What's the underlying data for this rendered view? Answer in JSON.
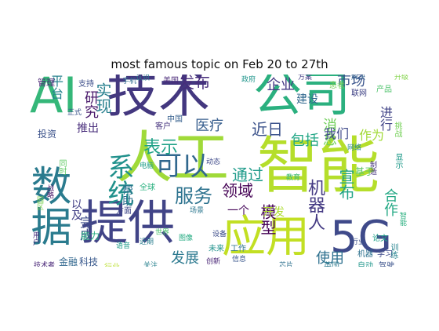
{
  "figure": {
    "title": "most famous topic on Feb 20 to 27th"
  },
  "words": [
    {
      "id": "AI",
      "text": "AI",
      "color": "#35b779"
    },
    {
      "id": "jishu",
      "text": "技术",
      "color": "#43377f"
    },
    {
      "id": "gongsi",
      "text": "公司",
      "color": "#2bb07f"
    },
    {
      "id": "shuju",
      "text": "数据",
      "color": "#2a7b8e"
    },
    {
      "id": "rengong",
      "text": "人工",
      "color": "#a0da39"
    },
    {
      "id": "zhineng",
      "text": "智能",
      "color": "#b5de2b"
    },
    {
      "id": "tigong",
      "text": "提供",
      "color": "#414487"
    },
    {
      "id": "yingyong",
      "text": "应用",
      "color": "#c2df23"
    },
    {
      "id": "5G",
      "text": "5G",
      "color": "#3f4a8a"
    },
    {
      "id": "keyi",
      "text": "可以",
      "color": "#31688e"
    },
    {
      "id": "xitong",
      "text": "系统",
      "color": "#21918c"
    },
    {
      "id": "fuwu",
      "text": "服务",
      "color": "#2c728e"
    },
    {
      "id": "fabu",
      "text": "发布",
      "color": "#472d7b"
    },
    {
      "id": "qiye",
      "text": "企业",
      "color": "#443983"
    },
    {
      "id": "shichang",
      "text": "市场",
      "color": "#3a548c"
    },
    {
      "id": "yanjiu",
      "text": "研究",
      "color": "#48186a"
    },
    {
      "id": "shixian",
      "text": "实现",
      "color": "#277f8e"
    },
    {
      "id": "pingtai",
      "text": "平台",
      "color": "#26828e"
    },
    {
      "id": "jianshe",
      "text": "建设",
      "color": "#31688e"
    },
    {
      "id": "jinri",
      "text": "近日",
      "color": "#3b528b"
    },
    {
      "id": "yiliao",
      "text": "医疗",
      "color": "#365d8d"
    },
    {
      "id": "biaoshi",
      "text": "表示",
      "color": "#1fa187"
    },
    {
      "id": "tongguo",
      "text": "通过",
      "color": "#1e9b8a"
    },
    {
      "id": "lingyu",
      "text": "领域",
      "color": "#440154"
    },
    {
      "id": "baokuo",
      "text": "包括",
      "color": "#21a685"
    },
    {
      "id": "xiaoxi",
      "text": "消息",
      "color": "#6ece58"
    },
    {
      "id": "women",
      "text": "我们",
      "color": "#3e4989"
    },
    {
      "id": "zuowei",
      "text": "作为",
      "color": "#a2da37"
    },
    {
      "id": "jinxing",
      "text": "进行",
      "color": "#414487"
    },
    {
      "id": "xuanbu",
      "text": "宣布",
      "color": "#20a386"
    },
    {
      "id": "hezuo",
      "text": "合作",
      "color": "#22a884"
    },
    {
      "id": "jiqiren",
      "text": "机器人",
      "color": "#443a83"
    },
    {
      "id": "shiyong",
      "text": "使用",
      "color": "#2d708e"
    },
    {
      "id": "moxing",
      "text": "模型",
      "color": "#440154"
    },
    {
      "id": "kaifa",
      "text": "开发",
      "color": "#addc30"
    },
    {
      "id": "fazhan",
      "text": "发展",
      "color": "#2a788e"
    },
    {
      "id": "yige",
      "text": "一个",
      "color": "#46075a"
    },
    {
      "id": "wancheng",
      "text": "完成",
      "color": "#3e4c8a"
    },
    {
      "id": "yiji",
      "text": "以及",
      "color": "#423f85"
    },
    {
      "id": "bangzhu",
      "text": "帮助",
      "color": "#2e6f8e"
    },
    {
      "id": "tuichu",
      "text": "推出",
      "color": "#472c7a"
    },
    {
      "id": "touzi",
      "text": "投资",
      "color": "#3b528b"
    },
    {
      "id": "jinrong",
      "text": "金融",
      "color": "#31678e"
    },
    {
      "id": "keji",
      "text": "科技",
      "color": "#38588c"
    },
    {
      "id": "nengli",
      "text": "能力",
      "color": "#27ad81"
    },
    {
      "id": "guanli",
      "text": "管理",
      "color": "#482374"
    },
    {
      "id": "zhichi",
      "text": "支持",
      "color": "#3d4e8a"
    },
    {
      "id": "tongshi",
      "text": "同时",
      "color": "#5ec962"
    },
    {
      "id": "zhongguo",
      "text": "中国",
      "color": "#355f8d"
    },
    {
      "id": "meiguo",
      "text": "美国",
      "color": "#482878"
    },
    {
      "id": "kehu",
      "text": "客户",
      "color": "#46337e"
    },
    {
      "id": "weilai",
      "text": "未来",
      "color": "#20928c"
    },
    {
      "id": "gongzuo",
      "text": "工作",
      "color": "#2c728e"
    },
    {
      "id": "yingguo",
      "text": "英国",
      "color": "#2a788e"
    },
    {
      "id": "zidong",
      "text": "自动",
      "color": "#1f968b"
    },
    {
      "id": "jiashi",
      "text": "驾驶",
      "color": "#3b528b"
    },
    {
      "id": "jiqi",
      "text": "机器",
      "color": "#2c718e"
    },
    {
      "id": "xuexi",
      "text": "学习",
      "color": "#3e4a89"
    },
    {
      "id": "xinxi",
      "text": "信息",
      "color": "#39568c"
    },
    {
      "id": "jiyu",
      "text": "基于",
      "color": "#5cc863"
    },
    {
      "id": "lianwang",
      "text": "联网",
      "color": "#414487"
    },
    {
      "id": "chanpin",
      "text": "产品",
      "color": "#4ec36b"
    },
    {
      "id": "huanzhe",
      "text": "患者",
      "color": "#70cf57"
    },
    {
      "id": "quanqiu",
      "text": "全球",
      "color": "#2ab07f"
    },
    {
      "id": "shuzihua",
      "text": "数字化",
      "color": "#46327e"
    },
    {
      "id": "xianshi",
      "text": "显示",
      "color": "#1f9a8a"
    },
    {
      "id": "tiaozhan",
      "text": "挑战",
      "color": "#73d056"
    },
    {
      "id": "jishuzhe",
      "text": "技术者",
      "color": "#482677"
    },
    {
      "id": "fangmian",
      "text": "方面",
      "color": "#3f4788"
    },
    {
      "id": "xunlian",
      "text": "训练",
      "color": "#25838e"
    },
    {
      "id": "zhiyue",
      "text": "智能",
      "color": "#29af7f"
    },
    {
      "id": "lunwen",
      "text": "论文",
      "color": "#1fa088"
    },
    {
      "id": "huodong",
      "text": "行业",
      "color": "#b8de29"
    },
    {
      "id": "mubiao",
      "text": "目前",
      "color": "#31688e"
    },
    {
      "id": "jiagou",
      "text": "架构",
      "color": "#95d840"
    },
    {
      "id": "suanfa",
      "text": "算法",
      "color": "#3a548c"
    },
    {
      "id": "guanzhu",
      "text": "关注",
      "color": "#27808e"
    },
    {
      "id": "xinpian",
      "text": "芯片",
      "color": "#2d708e"
    },
    {
      "id": "yuanqu",
      "text": "园区",
      "color": "#7ad151"
    },
    {
      "id": "zhanlue",
      "text": "战略",
      "color": "#48186a"
    },
    {
      "id": "wangluo",
      "text": "网络",
      "color": "#24878e"
    },
    {
      "id": "zhizao",
      "text": "制造",
      "color": "#45337d"
    },
    {
      "id": "jinqi",
      "text": "近期",
      "color": "#287c8e"
    },
    {
      "id": "shebei",
      "text": "设备",
      "color": "#3d4d8a"
    },
    {
      "id": "yujian",
      "text": "语音",
      "color": "#1e9c89"
    },
    {
      "id": "shijie",
      "text": "世界",
      "color": "#4ac16d"
    },
    {
      "id": "changjing",
      "text": "场景",
      "color": "#2a768e"
    },
    {
      "id": "yonghu",
      "text": "用户",
      "color": "#472f7d"
    },
    {
      "id": "jiejue",
      "text": "解决",
      "color": "#34618d"
    },
    {
      "id": "chuangxin",
      "text": "创新",
      "color": "#482475"
    },
    {
      "id": "diannao",
      "text": "电脑",
      "color": "#1f9e89"
    },
    {
      "id": "jiaoyu",
      "text": "教育",
      "color": "#3fbc73"
    },
    {
      "id": "fangan",
      "text": "方案",
      "color": "#433e85"
    },
    {
      "id": "shouji",
      "text": "手机",
      "color": "#2f6c8e"
    },
    {
      "id": "zhengfu",
      "text": "政府",
      "color": "#1f958b"
    },
    {
      "id": "hangye",
      "text": "行业",
      "color": "#3c508b"
    },
    {
      "id": "qiche",
      "text": "汽车",
      "color": "#472a7a"
    },
    {
      "id": "tuxiang",
      "text": "图像",
      "color": "#25ab82"
    },
    {
      "id": "renshi",
      "text": "认识",
      "color": "#287d8e"
    },
    {
      "id": "dongtai",
      "text": "动态",
      "color": "#3e4989"
    },
    {
      "id": "shengji",
      "text": "升级",
      "color": "#84d44b"
    },
    {
      "id": "zhengshi",
      "text": "正式",
      "color": "#3a538b"
    }
  ]
}
